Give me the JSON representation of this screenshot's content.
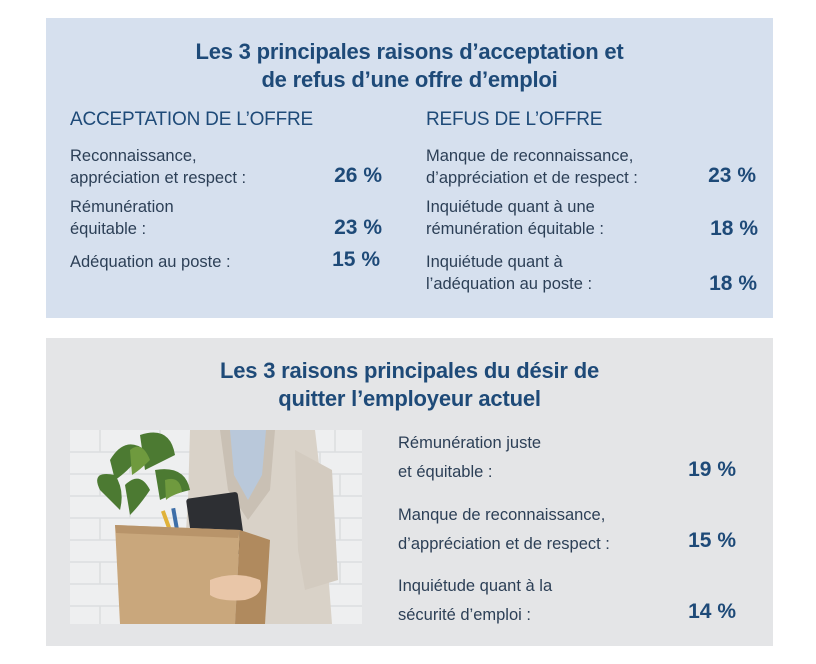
{
  "top": {
    "title_line1": "Les 3 principales raisons d’acceptation et",
    "title_line2": "de refus d’une offre d’emploi",
    "acceptance": {
      "heading": "ACCEPTATION DE L’OFFRE",
      "items": [
        {
          "line1": "Reconnaissance,",
          "line2": "appréciation et respect :",
          "value": "26 %"
        },
        {
          "line1": "Rémunération",
          "line2": "équitable :",
          "value": "23 %"
        },
        {
          "line1": "Adéquation au poste :",
          "line2": "",
          "value": "15 %"
        }
      ]
    },
    "refusal": {
      "heading": "REFUS DE L’OFFRE",
      "items": [
        {
          "line1": "Manque de reconnaissance,",
          "line2": "d’appréciation et de respect :",
          "value": "23 %"
        },
        {
          "line1": "Inquiétude quant à une",
          "line2": "rémunération équitable :",
          "value": "18 %"
        },
        {
          "line1": "Inquiétude quant à",
          "line2": "l’adéquation au poste :",
          "value": "18 %"
        }
      ]
    }
  },
  "bottom": {
    "title_line1": "Les 3 raisons principales du désir de",
    "title_line2": "quitter l’employeur actuel",
    "items": [
      {
        "line1": "Rémunération juste",
        "line2": "et équitable :",
        "value": "19 %"
      },
      {
        "line1": "Manque de reconnaissance,",
        "line2": "d’appréciation et de respect :",
        "value": "15 %"
      },
      {
        "line1": "Inquiétude quant à la",
        "line2": "sécurité d’emploi :",
        "value": "14 %"
      }
    ],
    "photo_icon": "office-worker-with-box-photo"
  },
  "colors": {
    "top_panel": "#d6e0ee",
    "bottom_panel": "#e4e5e7",
    "heading_blue": "#1e4a78"
  }
}
